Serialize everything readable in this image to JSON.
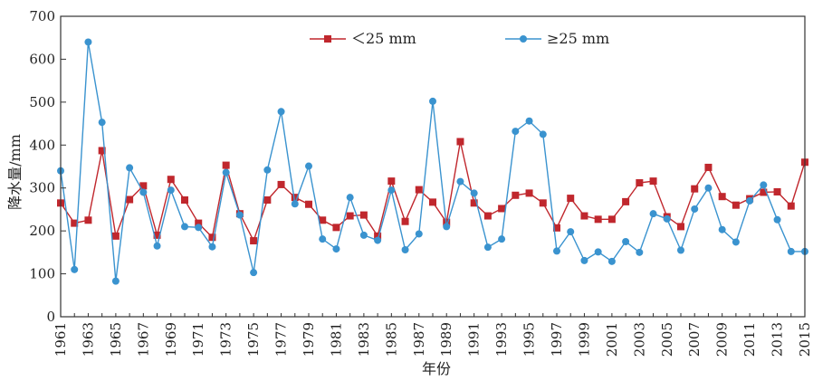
{
  "chart_data": {
    "type": "line",
    "title": "",
    "xlabel": "年份",
    "ylabel": "降水量/mm",
    "ylim": [
      0,
      700
    ],
    "yticks": [
      0,
      100,
      200,
      300,
      400,
      500,
      600,
      700
    ],
    "xlim": [
      1961,
      2015
    ],
    "xticks": [
      1961,
      1963,
      1965,
      1967,
      1969,
      1971,
      1973,
      1975,
      1977,
      1979,
      1981,
      1983,
      1985,
      1987,
      1989,
      1991,
      1993,
      1995,
      1997,
      1999,
      2001,
      2003,
      2005,
      2007,
      2009,
      2011,
      2013,
      2015
    ],
    "grid": false,
    "legend_position": "top-center",
    "x": [
      1961,
      1962,
      1963,
      1964,
      1965,
      1966,
      1967,
      1968,
      1969,
      1970,
      1971,
      1972,
      1973,
      1974,
      1975,
      1976,
      1977,
      1978,
      1979,
      1980,
      1981,
      1982,
      1983,
      1984,
      1985,
      1986,
      1987,
      1988,
      1989,
      1990,
      1991,
      1992,
      1993,
      1994,
      1995,
      1996,
      1997,
      1998,
      1999,
      2000,
      2001,
      2002,
      2003,
      2004,
      2005,
      2006,
      2007,
      2008,
      2009,
      2010,
      2011,
      2012,
      2013,
      2014,
      2015
    ],
    "series": [
      {
        "name": "＜25 mm",
        "color": "#c0272d",
        "marker": "square",
        "values": [
          265,
          218,
          225,
          387,
          188,
          273,
          305,
          190,
          320,
          272,
          218,
          185,
          353,
          240,
          177,
          272,
          308,
          278,
          262,
          225,
          208,
          235,
          237,
          188,
          316,
          222,
          296,
          267,
          220,
          408,
          265,
          235,
          252,
          283,
          288,
          265,
          207,
          276,
          235,
          227,
          227,
          268,
          312,
          316,
          233,
          210,
          298,
          348,
          280,
          260,
          275,
          290,
          291,
          258,
          360
        ]
      },
      {
        "name": "≥25 mm",
        "color": "#3a93cf",
        "marker": "circle",
        "values": [
          340,
          110,
          640,
          453,
          83,
          347,
          290,
          165,
          295,
          210,
          208,
          163,
          336,
          237,
          103,
          342,
          478,
          263,
          351,
          181,
          158,
          278,
          190,
          178,
          295,
          156,
          193,
          502,
          210,
          315,
          288,
          162,
          181,
          432,
          456,
          425,
          153,
          198,
          131,
          151,
          129,
          175,
          150,
          240,
          228,
          155,
          251,
          300,
          203,
          174,
          270,
          307,
          226,
          152,
          152
        ]
      }
    ]
  }
}
